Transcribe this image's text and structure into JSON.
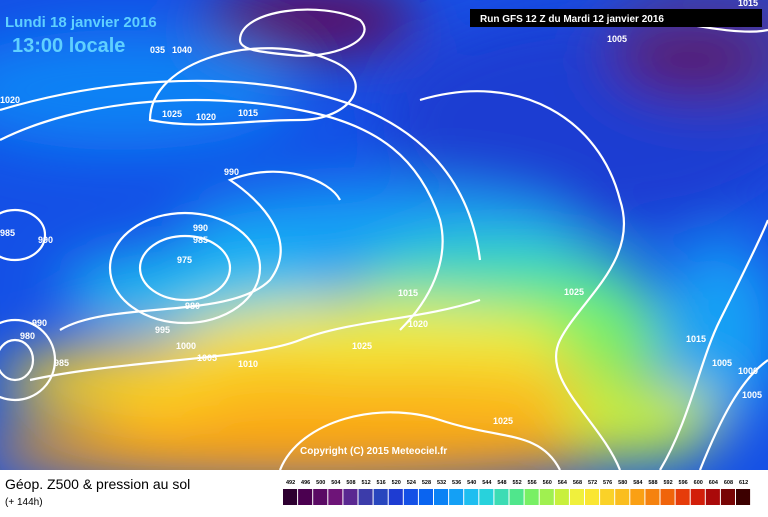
{
  "header": {
    "date": "Lundi 18 janvier 2016",
    "time": "13:00 locale",
    "run": "Run GFS 12 Z du Mardi 12 janvier 2016"
  },
  "isobar_labels": [
    "035",
    "1040",
    "1020",
    "1025",
    "1020",
    "1015",
    "990",
    "985",
    "990",
    "990",
    "985",
    "975",
    "980",
    "990",
    "980",
    "985",
    "995",
    "1000",
    "1005",
    "1010",
    "1015",
    "1020",
    "1025",
    "1025",
    "1015",
    "1005",
    "1000",
    "1005",
    "1025",
    "1005",
    "1015"
  ],
  "copyright": "Copyright (C) 2015 Meteociel.fr",
  "footer": {
    "title": "Géop. Z500 & pression au sol",
    "lead": "(+ 144h)"
  },
  "scale": {
    "values": [
      492,
      496,
      500,
      504,
      508,
      512,
      516,
      520,
      524,
      528,
      532,
      536,
      540,
      544,
      548,
      552,
      556,
      560,
      564,
      568,
      572,
      576,
      580,
      584,
      588,
      592,
      596,
      600,
      604,
      608,
      612
    ],
    "colors": [
      "#2d0030",
      "#4b0050",
      "#5a0a64",
      "#6e1478",
      "#5a2891",
      "#3c3caa",
      "#2846be",
      "#1e3cd2",
      "#1450e6",
      "#0a64f0",
      "#0a82f5",
      "#14a0f5",
      "#1ebef0",
      "#28d2dc",
      "#3cdcb4",
      "#50e68c",
      "#78f064",
      "#a0f050",
      "#c8f03c",
      "#f0f03c",
      "#fae632",
      "#fad228",
      "#fabe1e",
      "#faa014",
      "#f5820f",
      "#f0640a",
      "#e63c0a",
      "#d21e0a",
      "#aa0a0a",
      "#780505",
      "#3c0000"
    ]
  }
}
